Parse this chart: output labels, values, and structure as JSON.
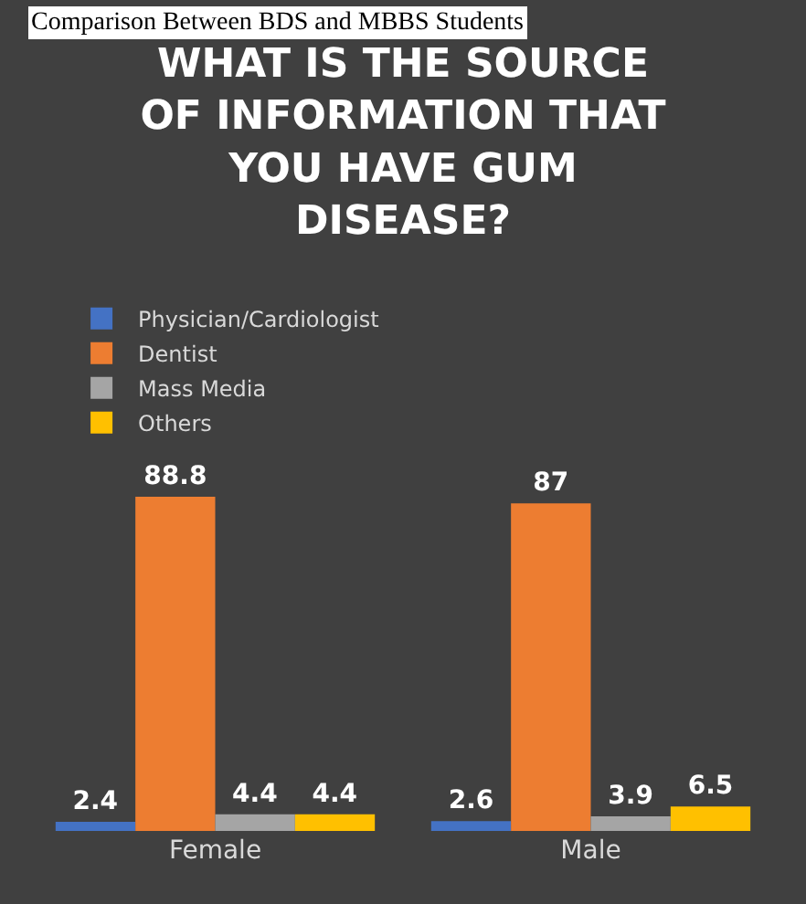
{
  "chart_data": {
    "type": "bar",
    "title": "WHAT IS THE SOURCE OF INFORMATION THAT YOU HAVE GUM DISEASE?",
    "annotations": [
      "Comparison Between BDS and MBBS Students"
    ],
    "categories": [
      "Female",
      "Male"
    ],
    "series": [
      {
        "name": "Physician/Cardiologist",
        "color": "#4472c4",
        "values": [
          2.4,
          2.6
        ]
      },
      {
        "name": "Dentist",
        "color": "#ed7d31",
        "values": [
          88.8,
          87
        ]
      },
      {
        "name": "Mass Media",
        "color": "#a5a5a5",
        "values": [
          4.4,
          3.9
        ]
      },
      {
        "name": "Others",
        "color": "#ffc000",
        "values": [
          4.4,
          6.5
        ]
      }
    ],
    "data_labels": true,
    "legend": "top"
  }
}
